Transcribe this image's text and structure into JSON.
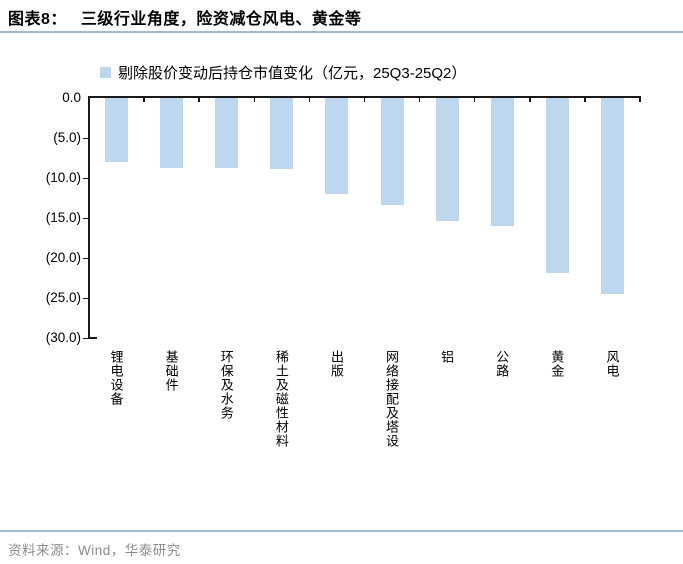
{
  "title": {
    "prefix": "图表8：",
    "text": "三级行业角度，险资减仓风电、黄金等"
  },
  "source": {
    "label": "资料来源：Wind，华泰研究"
  },
  "chart_data": {
    "type": "bar",
    "title": "",
    "legend": "剔除股价变动后持仓市值变化（亿元，25Q3-25Q2）",
    "categories": [
      "锂电设备",
      "基础件",
      "环保及水务",
      "稀土及磁性材料",
      "出版",
      "网络接配及塔设",
      "铝",
      "公路",
      "黄金",
      "风电"
    ],
    "values": [
      -8.0,
      -8.7,
      -8.8,
      -8.9,
      -12.0,
      -13.4,
      -15.4,
      -16.0,
      -21.9,
      -24.5
    ],
    "xlabel": "",
    "ylabel": "",
    "ylim": [
      -30,
      0
    ],
    "yticks": [
      0,
      -5,
      -10,
      -15,
      -20,
      -25,
      -30
    ],
    "ytick_labels": [
      "0.0",
      "(5.0)",
      "(10.0)",
      "(15.0)",
      "(20.0)",
      "(25.0)",
      "(30.0)"
    ],
    "grid": false,
    "legend_position": "top",
    "bar_color": "#bdd7ee"
  },
  "colors": {
    "bar": "#bdd7ee",
    "divider": "#a3b9cd",
    "axis": "#1a1a1a",
    "source_text": "#8c8c8c"
  }
}
